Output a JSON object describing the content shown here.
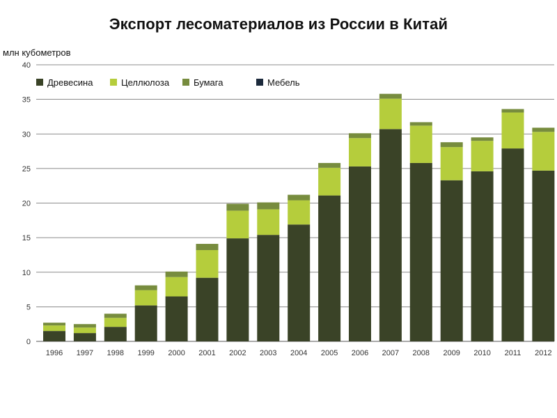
{
  "chart_data": {
    "type": "bar",
    "stacked": true,
    "title": "Экспорт лесоматериалов из России в Китай",
    "ylabel": "млн кубометров",
    "xlabel": "",
    "ylim": [
      0,
      40
    ],
    "yticks": [
      0,
      5,
      10,
      15,
      20,
      25,
      30,
      35,
      40
    ],
    "grid": true,
    "legend_position": "top-left",
    "categories": [
      "1996",
      "1997",
      "1998",
      "1999",
      "2000",
      "2001",
      "2002",
      "2003",
      "2004",
      "2005",
      "2006",
      "2007",
      "2008",
      "2009",
      "2010",
      "2011",
      "2012"
    ],
    "series": [
      {
        "name": "Древесина",
        "color": "#3a4327",
        "values": [
          1.5,
          1.2,
          2.1,
          5.2,
          6.5,
          9.2,
          14.9,
          15.4,
          16.9,
          21.1,
          25.3,
          30.7,
          25.8,
          23.3,
          24.6,
          27.9,
          24.7
        ]
      },
      {
        "name": "Целлюлоза",
        "color": "#b5cd3c",
        "values": [
          0.8,
          0.8,
          1.3,
          2.2,
          2.8,
          4.0,
          4.0,
          3.7,
          3.5,
          4.0,
          4.1,
          4.4,
          5.4,
          4.8,
          4.4,
          5.2,
          5.6
        ]
      },
      {
        "name": "Бумага",
        "color": "#778c3e",
        "values": [
          0.4,
          0.5,
          0.6,
          0.7,
          0.8,
          0.9,
          1.0,
          1.0,
          0.8,
          0.7,
          0.7,
          0.7,
          0.5,
          0.7,
          0.5,
          0.5,
          0.6
        ]
      },
      {
        "name": "Мебель",
        "color": "#1c2a3c",
        "values": [
          0,
          0,
          0,
          0,
          0,
          0,
          0,
          0,
          0,
          0,
          0,
          0,
          0,
          0,
          0,
          0,
          0
        ]
      }
    ]
  }
}
